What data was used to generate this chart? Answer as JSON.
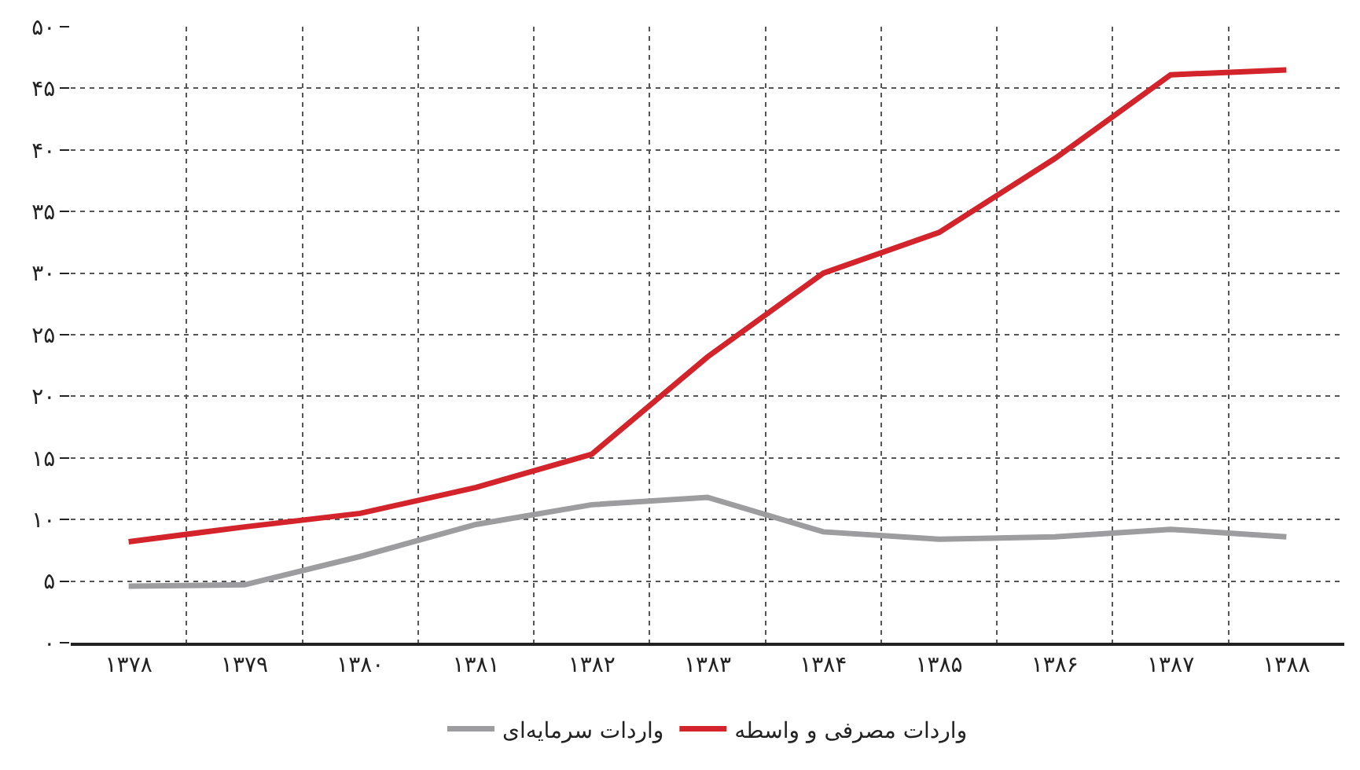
{
  "chart_data": {
    "type": "line",
    "categories": [
      "۱۳۷۸",
      "۱۳۷۹",
      "۱۳۸۰",
      "۱۳۸۱",
      "۱۳۸۲",
      "۱۳۸۳",
      "۱۳۸۴",
      "۱۳۸۵",
      "۱۳۸۶",
      "۱۳۸۷",
      "۱۳۸۸"
    ],
    "series": [
      {
        "name": "واردات سرمایه‌ای",
        "color": "#9d9d9f",
        "values": [
          4.6,
          4.7,
          7.0,
          9.6,
          11.2,
          11.8,
          9.0,
          8.4,
          8.6,
          9.2,
          8.6
        ]
      },
      {
        "name": "واردات مصرفی و واسطه",
        "color": "#d3232b",
        "values": [
          8.2,
          9.4,
          10.5,
          12.6,
          15.3,
          23.2,
          30.0,
          33.3,
          39.3,
          46.1,
          46.5
        ]
      }
    ],
    "ylim": [
      0,
      50
    ],
    "yticks": [
      {
        "value": 0,
        "label": "۰"
      },
      {
        "value": 5,
        "label": "۵"
      },
      {
        "value": 10,
        "label": "۱۰"
      },
      {
        "value": 15,
        "label": "۱۵"
      },
      {
        "value": 20,
        "label": "۲۰"
      },
      {
        "value": 25,
        "label": "۲۵"
      },
      {
        "value": 30,
        "label": "۳۰"
      },
      {
        "value": 35,
        "label": "۳۵"
      },
      {
        "value": 40,
        "label": "۴۰"
      },
      {
        "value": 45,
        "label": "۴۵"
      },
      {
        "value": 50,
        "label": "۵۰"
      }
    ],
    "grid": true,
    "legend": "bottom",
    "marker": "none",
    "line_style": "solid"
  }
}
